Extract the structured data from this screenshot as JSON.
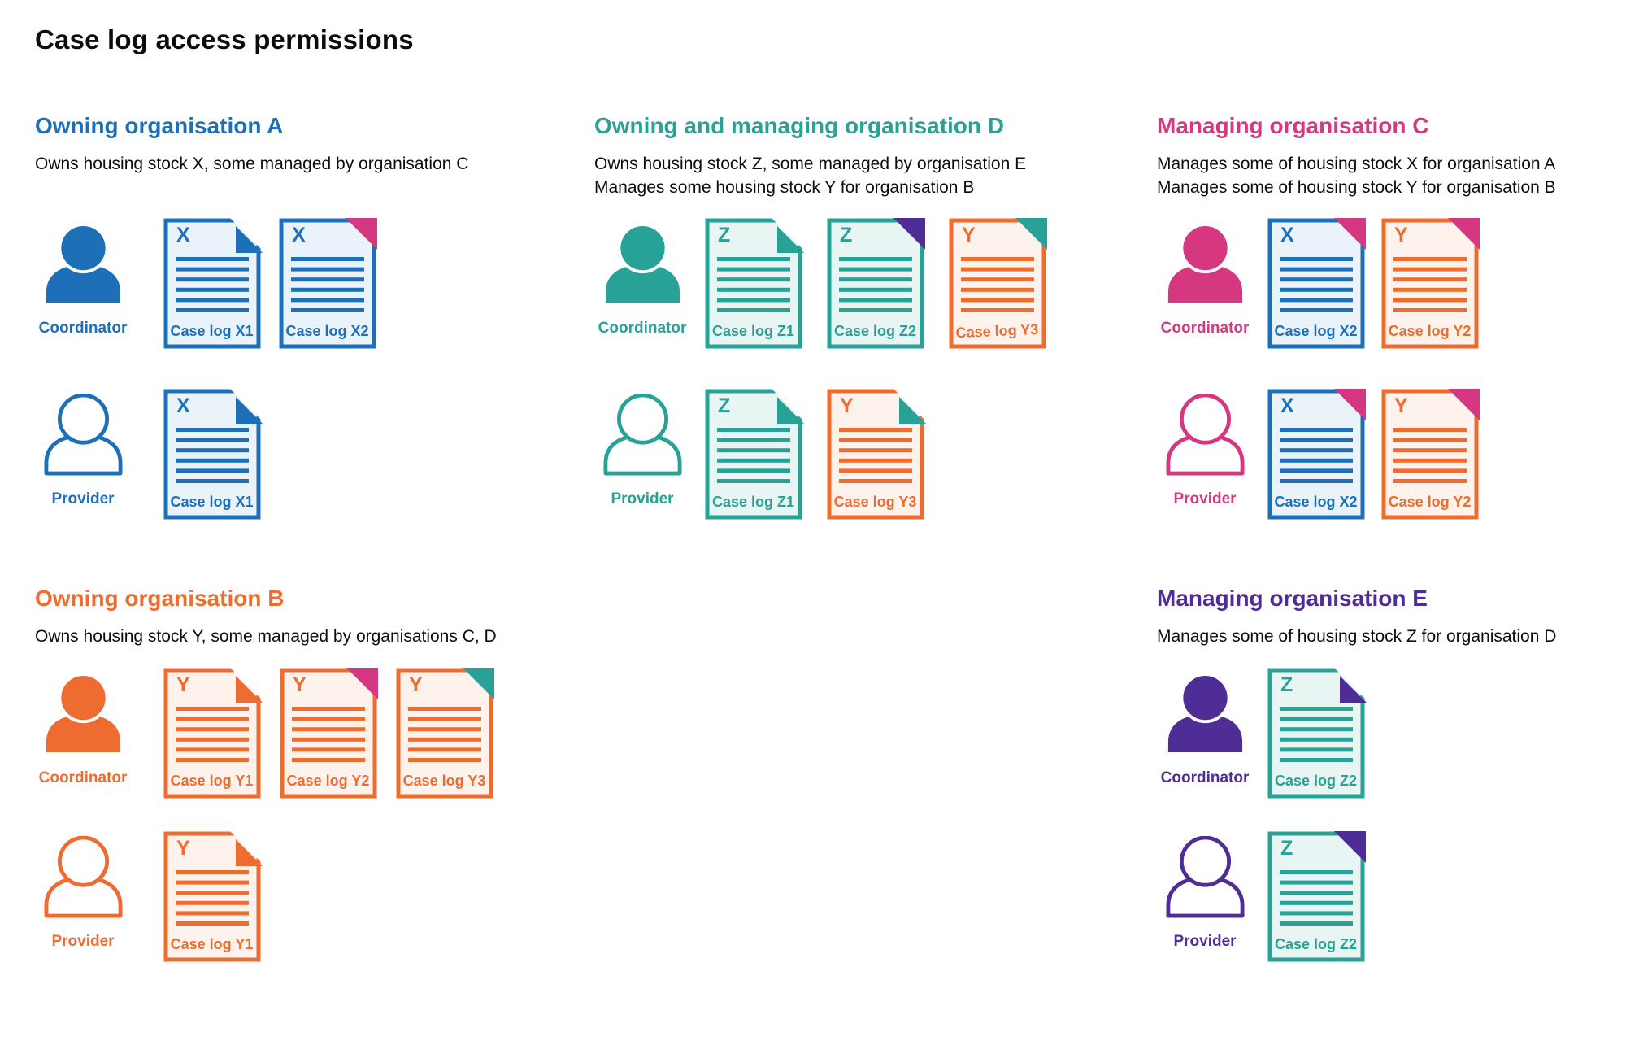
{
  "page": {
    "title": "Case log access permissions"
  },
  "labels": {
    "coordinator": "Coordinator",
    "provider": "Provider"
  },
  "colors": {
    "blue": "#1d70b8",
    "teal": "#28a197",
    "orange": "#ef6c30",
    "pink": "#d53880",
    "purple": "#4f2d96",
    "text": "#0b0c0c",
    "background": "#ffffff",
    "tint_blue": "#eaf2fa",
    "tint_teal": "#e9f5f2",
    "tint_orange": "#fdf3ec"
  },
  "sections": [
    {
      "id": "org-a",
      "heading": "Owning organisation A",
      "color": "blue",
      "description_lines": [
        "Owns housing stock X, some managed by organisation C"
      ],
      "rows": [
        {
          "role": "coordinator",
          "person_style": "filled",
          "docs": [
            {
              "letter": "X",
              "label": "Case log X1",
              "doc_color": "blue",
              "fold_color": "blue",
              "fold_style": "flap"
            },
            {
              "letter": "X",
              "label": "Case log X2",
              "doc_color": "blue",
              "fold_color": "pink",
              "fold_style": "solid"
            }
          ]
        },
        {
          "role": "provider",
          "person_style": "outline",
          "docs": [
            {
              "letter": "X",
              "label": "Case log X1",
              "doc_color": "blue",
              "fold_color": "blue",
              "fold_style": "flap"
            }
          ]
        }
      ]
    },
    {
      "id": "org-d",
      "heading": "Owning and managing organisation D",
      "color": "teal",
      "description_lines": [
        "Owns housing stock Z, some managed by organisation E",
        "Manages some housing stock Y for organisation B"
      ],
      "rows": [
        {
          "role": "coordinator",
          "person_style": "filled",
          "docs": [
            {
              "letter": "Z",
              "label": "Case log Z1",
              "doc_color": "teal",
              "fold_color": "teal",
              "fold_style": "flap"
            },
            {
              "letter": "Z",
              "label": "Case log Z2",
              "doc_color": "teal",
              "fold_color": "purple",
              "fold_style": "solid"
            },
            {
              "letter": "Y",
              "label": "Case log Y3",
              "doc_color": "orange",
              "fold_color": "teal",
              "fold_style": "solid",
              "label_tilted": true
            }
          ]
        },
        {
          "role": "provider",
          "person_style": "outline",
          "docs": [
            {
              "letter": "Z",
              "label": "Case log Z1",
              "doc_color": "teal",
              "fold_color": "teal",
              "fold_style": "flap"
            },
            {
              "letter": "Y",
              "label": "Case log Y3",
              "doc_color": "orange",
              "fold_color": "teal",
              "fold_style": "flap"
            }
          ]
        }
      ]
    },
    {
      "id": "org-c",
      "heading": "Managing organisation C",
      "color": "pink",
      "description_lines": [
        "Manages some of housing stock X for organisation A",
        "Manages some of housing stock Y for organisation B"
      ],
      "rows": [
        {
          "role": "coordinator",
          "person_style": "filled",
          "docs": [
            {
              "letter": "X",
              "label": "Case log X2",
              "doc_color": "blue",
              "fold_color": "pink",
              "fold_style": "solid"
            },
            {
              "letter": "Y",
              "label": "Case log Y2",
              "doc_color": "orange",
              "fold_color": "pink",
              "fold_style": "solid"
            }
          ]
        },
        {
          "role": "provider",
          "person_style": "outline",
          "docs": [
            {
              "letter": "X",
              "label": "Case log X2",
              "doc_color": "blue",
              "fold_color": "pink",
              "fold_style": "solid"
            },
            {
              "letter": "Y",
              "label": "Case log Y2",
              "doc_color": "orange",
              "fold_color": "pink",
              "fold_style": "solid"
            }
          ]
        }
      ]
    },
    {
      "id": "org-b",
      "heading": "Owning organisation B",
      "color": "orange",
      "description_lines": [
        "Owns housing stock Y, some managed by organisations C, D"
      ],
      "rows": [
        {
          "role": "coordinator",
          "person_style": "filled",
          "docs": [
            {
              "letter": "Y",
              "label": "Case log Y1",
              "doc_color": "orange",
              "fold_color": "orange",
              "fold_style": "flap"
            },
            {
              "letter": "Y",
              "label": "Case log Y2",
              "doc_color": "orange",
              "fold_color": "pink",
              "fold_style": "solid"
            },
            {
              "letter": "Y",
              "label": "Case log Y3",
              "doc_color": "orange",
              "fold_color": "teal",
              "fold_style": "solid"
            }
          ]
        },
        {
          "role": "provider",
          "person_style": "outline",
          "docs": [
            {
              "letter": "Y",
              "label": "Case log Y1",
              "doc_color": "orange",
              "fold_color": "orange",
              "fold_style": "flap"
            }
          ]
        }
      ]
    },
    {
      "id": "org-e",
      "heading": "Managing organisation E",
      "color": "purple",
      "description_lines": [
        "Manages some of housing stock Z for organisation D"
      ],
      "rows": [
        {
          "role": "coordinator",
          "person_style": "filled",
          "docs": [
            {
              "letter": "Z",
              "label": "Case log Z2",
              "doc_color": "teal",
              "fold_color": "purple",
              "fold_style": "flap"
            }
          ]
        },
        {
          "role": "provider",
          "person_style": "outline",
          "docs": [
            {
              "letter": "Z",
              "label": "Case log Z2",
              "doc_color": "teal",
              "fold_color": "purple",
              "fold_style": "solid"
            }
          ]
        }
      ]
    }
  ]
}
